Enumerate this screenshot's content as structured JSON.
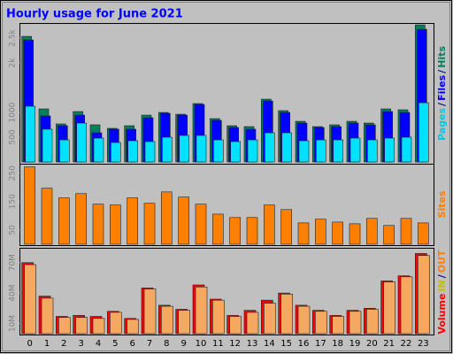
{
  "title": "Hourly usage for June 2021",
  "chart_data": [
    {
      "type": "bar",
      "ylim": [
        0,
        2770
      ],
      "yticks": [
        500,
        1000,
        {
          "value": 2000,
          "label": "2k"
        },
        {
          "value": 2500,
          "label": "2.5k"
        }
      ],
      "legend": [
        {
          "text": "Pages",
          "color": "#00c8e0"
        },
        {
          "text": "/",
          "color": "#000080"
        },
        {
          "text": "Files",
          "color": "#0000ff"
        },
        {
          "text": "/",
          "color": "#000080"
        },
        {
          "text": "Hits",
          "color": "#00805c"
        }
      ],
      "series": [
        {
          "color": "#00805c",
          "values": [
            2536,
            1071,
            768,
            1018,
            750,
            679,
            732,
            946,
            1000,
            964,
            1179,
            875,
            732,
            714,
            1268,
            1036,
            821,
            714,
            750,
            821,
            786,
            1071,
            1054,
            2768
          ]
        },
        {
          "color": "#0000ff",
          "values": [
            2464,
            929,
            732,
            946,
            589,
            661,
            661,
            893,
            982,
            946,
            1161,
            839,
            696,
            661,
            1232,
            1000,
            786,
            696,
            714,
            786,
            750,
            1018,
            1000,
            2679
          ]
        },
        {
          "color": "#00e0ff",
          "values": [
            1125,
            661,
            446,
            786,
            482,
            393,
            429,
            411,
            500,
            536,
            536,
            446,
            411,
            446,
            589,
            589,
            429,
            446,
            446,
            482,
            446,
            482,
            500,
            1196
          ]
        }
      ]
    },
    {
      "type": "bar",
      "ylim": [
        0,
        280
      ],
      "yticks": [
        50,
        150,
        250
      ],
      "legend": [
        {
          "text": "Sites",
          "color": "#ff8000"
        }
      ],
      "series": [
        {
          "color": "#ff8000",
          "values": [
            272,
            197,
            163,
            178,
            141,
            138,
            163,
            144,
            184,
            166,
            141,
            106,
            94,
            94,
            138,
            122,
            75,
            88,
            78,
            72,
            91,
            66,
            91,
            75
          ]
        }
      ]
    },
    {
      "type": "bar",
      "ylim": [
        0,
        82
      ],
      "yticks": [
        {
          "value": 10,
          "label": "10M"
        },
        {
          "value": 40,
          "label": "40M"
        },
        {
          "value": 70,
          "label": "70M"
        }
      ],
      "categories": [
        "0",
        "1",
        "2",
        "3",
        "4",
        "5",
        "6",
        "7",
        "8",
        "9",
        "10",
        "11",
        "12",
        "13",
        "14",
        "15",
        "16",
        "17",
        "18",
        "19",
        "20",
        "21",
        "22",
        "23"
      ],
      "legend": [
        {
          "text": "Volume",
          "color": "#ff0000"
        },
        {
          "text": "IN",
          "color": "#c0c000"
        },
        {
          "text": "/",
          "color": "#000080"
        },
        {
          "text": "OUT",
          "color": "#ff8000"
        }
      ],
      "series": [
        {
          "color": "#ff0000",
          "values": [
            70,
            37,
            17,
            18,
            17,
            22,
            15,
            45,
            28,
            24,
            48,
            34,
            18,
            23,
            33,
            40,
            28,
            23,
            18,
            23,
            25,
            52,
            57,
            79
          ]
        },
        {
          "color": "#f4a860",
          "values": [
            68,
            35,
            16,
            16,
            15,
            21,
            14,
            44,
            27,
            23,
            46,
            33,
            17,
            21,
            30,
            39,
            27,
            22,
            17,
            22,
            24,
            51,
            56,
            77
          ]
        }
      ]
    }
  ]
}
